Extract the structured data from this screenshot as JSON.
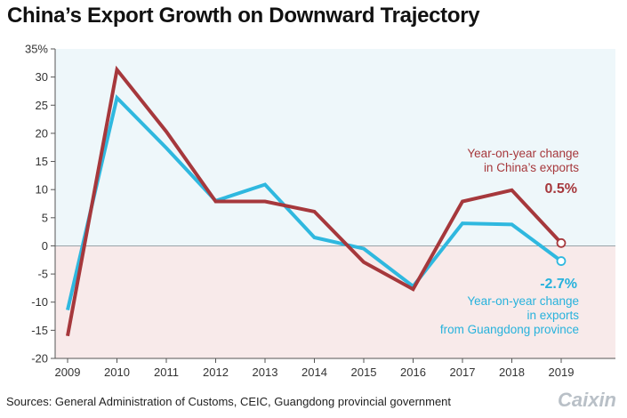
{
  "title": "China’s Export Growth on Downward Trajectory",
  "source": "Sources: General Administration of Customs, CEIC, Guangdong provincial government",
  "brand": "Caixin",
  "colors": {
    "china": "#a6383c",
    "guangdong": "#2fb8df",
    "positive_bg": "#eef7fa",
    "negative_bg": "#f8eaea"
  },
  "annotations": {
    "china_label_line1": "Year-on-year change",
    "china_label_line2": "in China’s exports",
    "china_value": "0.5%",
    "guangdong_value": "-2.7%",
    "guangdong_label_line1": "Year-on-year change",
    "guangdong_label_line2": "in exports",
    "guangdong_label_line3": "from Guangdong province"
  },
  "chart_data": {
    "type": "line",
    "title": "China’s Export Growth on Downward Trajectory",
    "xlabel": "",
    "ylabel": "",
    "x": [
      "2009",
      "2010",
      "2011",
      "2012",
      "2013",
      "2014",
      "2015",
      "2016",
      "2017",
      "2018",
      "2019"
    ],
    "ylim": [
      -20,
      35
    ],
    "yticks": [
      35,
      30,
      25,
      20,
      15,
      10,
      5,
      0,
      -5,
      -10,
      -15,
      -20
    ],
    "ytick_labels": [
      "35%",
      "30",
      "25",
      "20",
      "15",
      "10",
      "5",
      "0",
      "-5",
      "-10",
      "-15",
      "-20"
    ],
    "series": [
      {
        "name": "Year-on-year change in China’s exports",
        "key": "china",
        "values": [
          -16.0,
          31.3,
          20.3,
          7.9,
          7.9,
          6.1,
          -2.9,
          -7.7,
          7.9,
          9.9,
          0.5
        ]
      },
      {
        "name": "Year-on-year change in exports from Guangdong province",
        "key": "guangdong",
        "values": [
          -11.4,
          26.3,
          17.4,
          8.0,
          10.9,
          1.5,
          -0.5,
          -7.2,
          4.0,
          3.8,
          -2.7
        ]
      }
    ]
  }
}
